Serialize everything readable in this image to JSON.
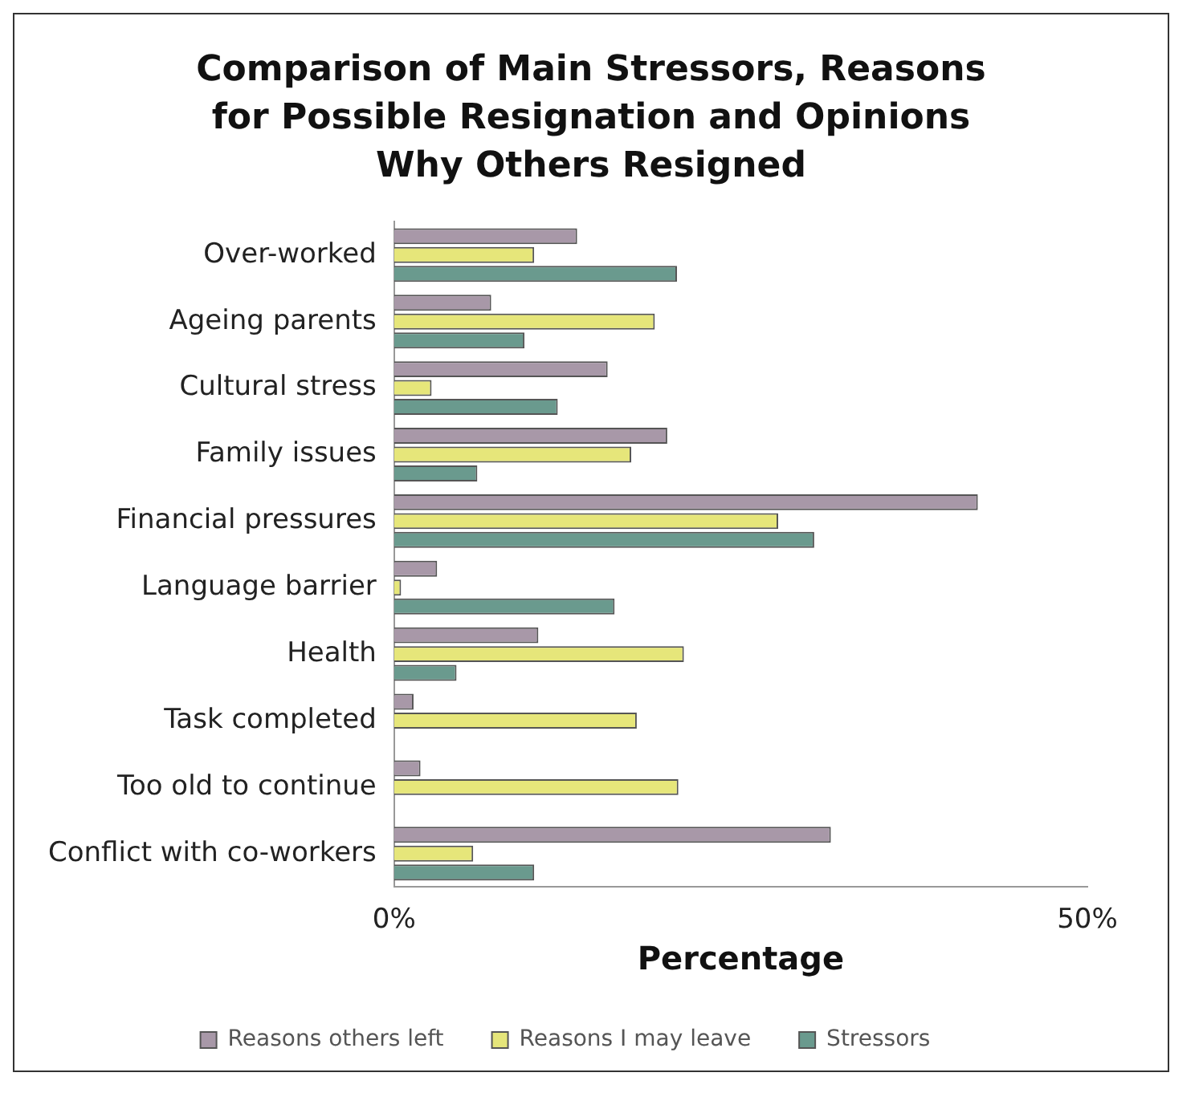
{
  "chart_data": {
    "type": "bar",
    "orientation": "horizontal",
    "title": "Comparison of Main Stressors, Reasons for Possible Resignation and Opinions Why Others Resigned",
    "categories": [
      "Over-worked",
      "Ageing parents",
      "Cultural stress",
      "Family issues",
      "Financial pressures",
      "Language barrier",
      "Health",
      "Task completed",
      "Too old to continue",
      "Conflict with co-workers"
    ],
    "series": [
      {
        "name": "Reasons others left",
        "color": "#a898a8",
        "values": [
          13.2,
          7.0,
          15.4,
          19.7,
          42.1,
          3.1,
          10.4,
          1.4,
          1.9,
          31.5
        ]
      },
      {
        "name": "Reasons I may leave",
        "color": "#e6e67a",
        "values": [
          10.1,
          18.8,
          2.7,
          17.1,
          27.7,
          0.5,
          20.9,
          17.5,
          20.5,
          5.7
        ]
      },
      {
        "name": "Stressors",
        "color": "#6a9a8e",
        "values": [
          20.4,
          9.4,
          11.8,
          6.0,
          30.3,
          15.9,
          4.5,
          0,
          0,
          10.1
        ]
      }
    ],
    "xlabel": "Percentage",
    "xlim": [
      0,
      50
    ],
    "xticks": [
      {
        "value": 0,
        "label": "0%"
      },
      {
        "value": 50,
        "label": "50%"
      }
    ],
    "grid": false,
    "legend": "bottom"
  }
}
